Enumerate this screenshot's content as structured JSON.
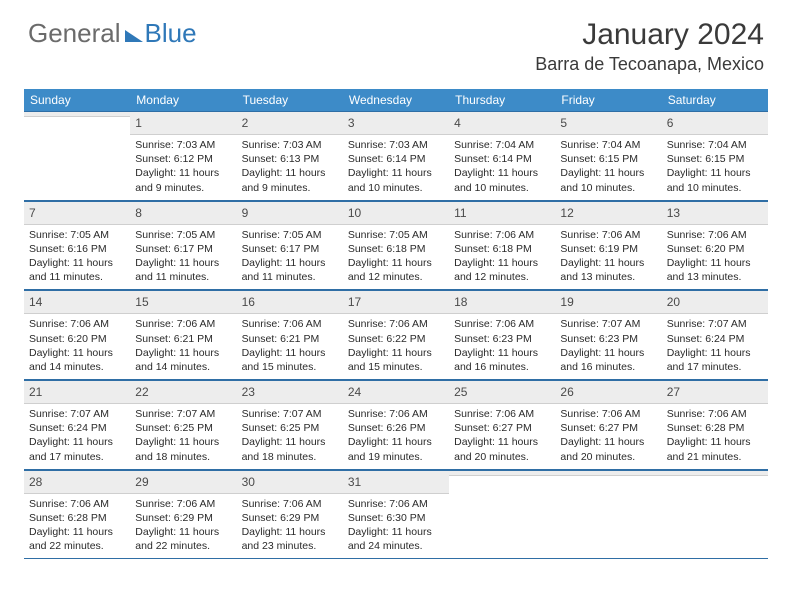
{
  "logo": {
    "text1": "General",
    "text2": "Blue"
  },
  "title": "January 2024",
  "location": "Barra de Tecoanapa, Mexico",
  "header_bg": "#3d8bc8",
  "border_color": "#2f6ea5",
  "daynum_bg": "#ededed",
  "daynames": [
    "Sunday",
    "Monday",
    "Tuesday",
    "Wednesday",
    "Thursday",
    "Friday",
    "Saturday"
  ],
  "weeks": [
    [
      {
        "blank": true
      },
      {
        "day": "1",
        "sunrise": "7:03 AM",
        "sunset": "6:12 PM",
        "dl": "11 hours and 9 minutes."
      },
      {
        "day": "2",
        "sunrise": "7:03 AM",
        "sunset": "6:13 PM",
        "dl": "11 hours and 9 minutes."
      },
      {
        "day": "3",
        "sunrise": "7:03 AM",
        "sunset": "6:14 PM",
        "dl": "11 hours and 10 minutes."
      },
      {
        "day": "4",
        "sunrise": "7:04 AM",
        "sunset": "6:14 PM",
        "dl": "11 hours and 10 minutes."
      },
      {
        "day": "5",
        "sunrise": "7:04 AM",
        "sunset": "6:15 PM",
        "dl": "11 hours and 10 minutes."
      },
      {
        "day": "6",
        "sunrise": "7:04 AM",
        "sunset": "6:15 PM",
        "dl": "11 hours and 10 minutes."
      }
    ],
    [
      {
        "day": "7",
        "sunrise": "7:05 AM",
        "sunset": "6:16 PM",
        "dl": "11 hours and 11 minutes."
      },
      {
        "day": "8",
        "sunrise": "7:05 AM",
        "sunset": "6:17 PM",
        "dl": "11 hours and 11 minutes."
      },
      {
        "day": "9",
        "sunrise": "7:05 AM",
        "sunset": "6:17 PM",
        "dl": "11 hours and 11 minutes."
      },
      {
        "day": "10",
        "sunrise": "7:05 AM",
        "sunset": "6:18 PM",
        "dl": "11 hours and 12 minutes."
      },
      {
        "day": "11",
        "sunrise": "7:06 AM",
        "sunset": "6:18 PM",
        "dl": "11 hours and 12 minutes."
      },
      {
        "day": "12",
        "sunrise": "7:06 AM",
        "sunset": "6:19 PM",
        "dl": "11 hours and 13 minutes."
      },
      {
        "day": "13",
        "sunrise": "7:06 AM",
        "sunset": "6:20 PM",
        "dl": "11 hours and 13 minutes."
      }
    ],
    [
      {
        "day": "14",
        "sunrise": "7:06 AM",
        "sunset": "6:20 PM",
        "dl": "11 hours and 14 minutes."
      },
      {
        "day": "15",
        "sunrise": "7:06 AM",
        "sunset": "6:21 PM",
        "dl": "11 hours and 14 minutes."
      },
      {
        "day": "16",
        "sunrise": "7:06 AM",
        "sunset": "6:21 PM",
        "dl": "11 hours and 15 minutes."
      },
      {
        "day": "17",
        "sunrise": "7:06 AM",
        "sunset": "6:22 PM",
        "dl": "11 hours and 15 minutes."
      },
      {
        "day": "18",
        "sunrise": "7:06 AM",
        "sunset": "6:23 PM",
        "dl": "11 hours and 16 minutes."
      },
      {
        "day": "19",
        "sunrise": "7:07 AM",
        "sunset": "6:23 PM",
        "dl": "11 hours and 16 minutes."
      },
      {
        "day": "20",
        "sunrise": "7:07 AM",
        "sunset": "6:24 PM",
        "dl": "11 hours and 17 minutes."
      }
    ],
    [
      {
        "day": "21",
        "sunrise": "7:07 AM",
        "sunset": "6:24 PM",
        "dl": "11 hours and 17 minutes."
      },
      {
        "day": "22",
        "sunrise": "7:07 AM",
        "sunset": "6:25 PM",
        "dl": "11 hours and 18 minutes."
      },
      {
        "day": "23",
        "sunrise": "7:07 AM",
        "sunset": "6:25 PM",
        "dl": "11 hours and 18 minutes."
      },
      {
        "day": "24",
        "sunrise": "7:06 AM",
        "sunset": "6:26 PM",
        "dl": "11 hours and 19 minutes."
      },
      {
        "day": "25",
        "sunrise": "7:06 AM",
        "sunset": "6:27 PM",
        "dl": "11 hours and 20 minutes."
      },
      {
        "day": "26",
        "sunrise": "7:06 AM",
        "sunset": "6:27 PM",
        "dl": "11 hours and 20 minutes."
      },
      {
        "day": "27",
        "sunrise": "7:06 AM",
        "sunset": "6:28 PM",
        "dl": "11 hours and 21 minutes."
      }
    ],
    [
      {
        "day": "28",
        "sunrise": "7:06 AM",
        "sunset": "6:28 PM",
        "dl": "11 hours and 22 minutes."
      },
      {
        "day": "29",
        "sunrise": "7:06 AM",
        "sunset": "6:29 PM",
        "dl": "11 hours and 22 minutes."
      },
      {
        "day": "30",
        "sunrise": "7:06 AM",
        "sunset": "6:29 PM",
        "dl": "11 hours and 23 minutes."
      },
      {
        "day": "31",
        "sunrise": "7:06 AM",
        "sunset": "6:30 PM",
        "dl": "11 hours and 24 minutes."
      },
      {
        "blank": true
      },
      {
        "blank": true
      },
      {
        "blank": true
      }
    ]
  ],
  "labels": {
    "sunrise": "Sunrise:",
    "sunset": "Sunset:",
    "daylight": "Daylight:"
  }
}
